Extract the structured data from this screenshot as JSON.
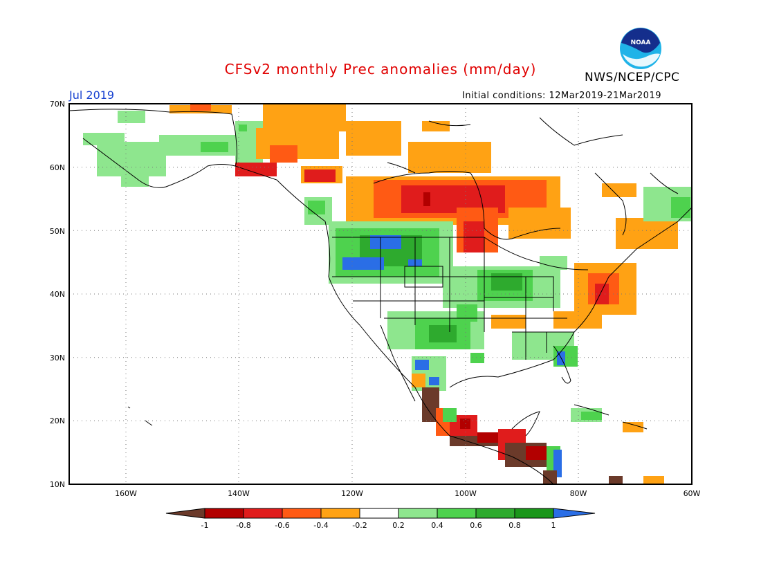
{
  "header": {
    "title": "CFSv2 monthly Prec anomalies (mm/day)",
    "agency": "NWS/NCEP/CPC",
    "month": "Jul 2019",
    "initial_conditions": "Initial conditions: 12Mar2019-21Mar2019",
    "logo_text": "NOAA"
  },
  "axes": {
    "lat_labels": [
      "70N",
      "60N",
      "50N",
      "40N",
      "30N",
      "20N",
      "10N"
    ],
    "lon_labels": [
      "160W",
      "140W",
      "120W",
      "100W",
      "80W",
      "60W"
    ]
  },
  "colorbar": {
    "labels": [
      "-1",
      "-0.8",
      "-0.6",
      "-0.4",
      "-0.2",
      "0.2",
      "0.4",
      "0.6",
      "0.8",
      "1"
    ],
    "colors": {
      "lt_-1": "#6b3a2a",
      "-1_-0.8": "#b20000",
      "-0.8_-0.6": "#e01c1c",
      "-0.6_-0.4": "#ff5a14",
      "-0.4_-0.2": "#ffa214",
      "-0.2_0.2": "#ffffff",
      "0.2_0.4": "#8ee68e",
      "0.4_0.6": "#4ed24e",
      "0.6_0.8": "#2eaa2e",
      "0.8_1": "#1a961a",
      "gt_1": "#2a6ee6"
    }
  }
}
